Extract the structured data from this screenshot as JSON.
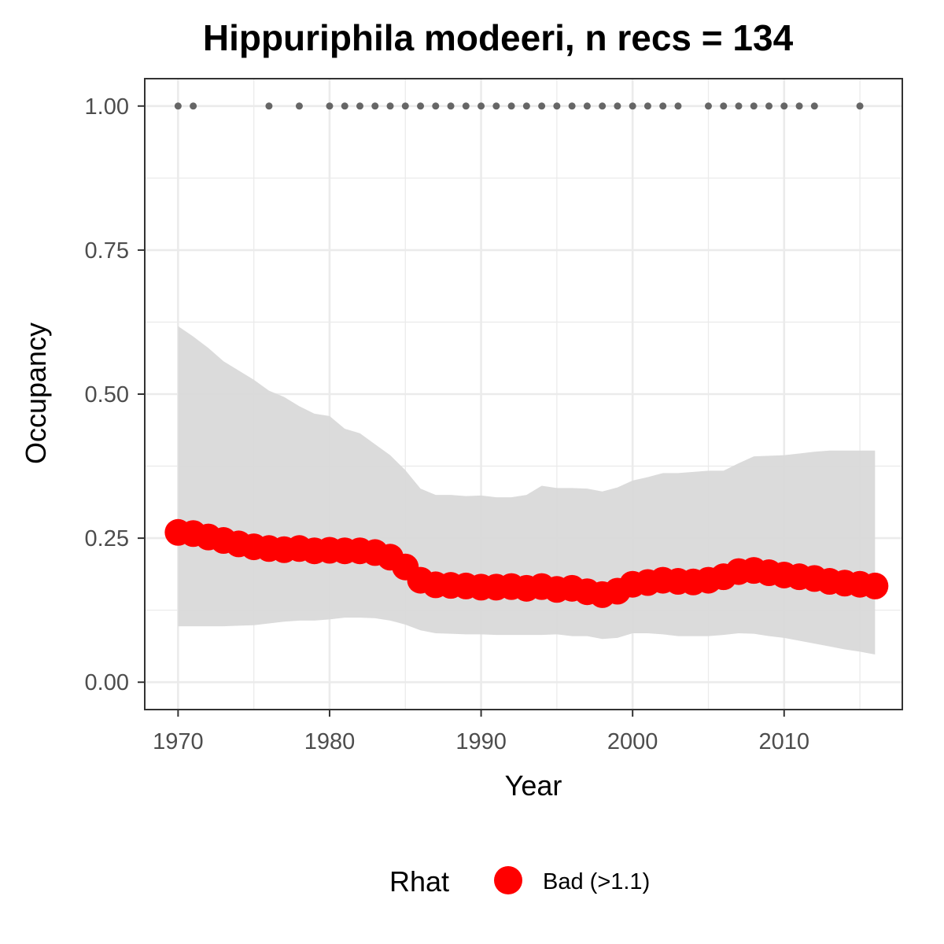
{
  "chart_data": {
    "type": "line",
    "title": "Hippuriphila modeeri, n recs = 134",
    "xlabel": "Year",
    "ylabel": "Occupancy",
    "xlim": [
      1967.8,
      2017.8
    ],
    "ylim": [
      -0.0475,
      1.0475
    ],
    "x_ticks": [
      1970,
      1980,
      1990,
      2000,
      2010
    ],
    "x_tick_labels": [
      "1970",
      "1980",
      "1990",
      "2000",
      "2010"
    ],
    "y_ticks": [
      0,
      0.25,
      0.5,
      0.75,
      1.0
    ],
    "y_tick_labels": [
      "0.00",
      "0.25",
      "0.50",
      "0.75",
      "1.00"
    ],
    "grid": true,
    "legend": {
      "position": "bottom",
      "title": "Rhat",
      "items": [
        {
          "label": "Bad (>1.1)",
          "color": "#ff0000"
        }
      ]
    },
    "colors": {
      "mean_points": "#ff0000",
      "ribbon": "#d9d9d9",
      "record_points": "#666666",
      "grid": "#ebebeb",
      "panel_border": "#333333"
    },
    "series": [
      {
        "kind": "point",
        "x": [
          1970,
          1971,
          1972,
          1973,
          1974,
          1975,
          1976,
          1977,
          1978,
          1979,
          1980,
          1981,
          1982,
          1983,
          1984,
          1985,
          1986,
          1987,
          1988,
          1989,
          1990,
          1991,
          1992,
          1993,
          1994,
          1995,
          1996,
          1997,
          1998,
          1999,
          2000,
          2001,
          2002,
          2003,
          2004,
          2005,
          2006,
          2007,
          2008,
          2009,
          2010,
          2011,
          2012,
          2013,
          2014,
          2015,
          2016
        ],
        "values": [
          0.26,
          0.258,
          0.252,
          0.246,
          0.24,
          0.235,
          0.232,
          0.23,
          0.232,
          0.228,
          0.229,
          0.228,
          0.228,
          0.225,
          0.217,
          0.2,
          0.177,
          0.169,
          0.168,
          0.167,
          0.165,
          0.165,
          0.166,
          0.163,
          0.166,
          0.161,
          0.163,
          0.157,
          0.152,
          0.158,
          0.17,
          0.173,
          0.177,
          0.175,
          0.174,
          0.177,
          0.183,
          0.192,
          0.194,
          0.19,
          0.186,
          0.183,
          0.18,
          0.175,
          0.172,
          0.17,
          0.167
        ]
      },
      {
        "kind": "ribbon",
        "x": [
          1970,
          1971,
          1972,
          1973,
          1974,
          1975,
          1976,
          1977,
          1978,
          1979,
          1980,
          1981,
          1982,
          1983,
          1984,
          1985,
          1986,
          1987,
          1988,
          1989,
          1990,
          1991,
          1992,
          1993,
          1994,
          1995,
          1996,
          1997,
          1998,
          1999,
          2000,
          2001,
          2002,
          2003,
          2004,
          2005,
          2006,
          2007,
          2008,
          2009,
          2010,
          2011,
          2012,
          2013,
          2014,
          2015,
          2016
        ],
        "lower": [
          0.097,
          0.097,
          0.097,
          0.097,
          0.098,
          0.099,
          0.102,
          0.105,
          0.107,
          0.107,
          0.109,
          0.112,
          0.112,
          0.111,
          0.107,
          0.1,
          0.09,
          0.085,
          0.084,
          0.083,
          0.083,
          0.082,
          0.082,
          0.082,
          0.082,
          0.083,
          0.08,
          0.08,
          0.075,
          0.077,
          0.085,
          0.085,
          0.083,
          0.08,
          0.08,
          0.08,
          0.082,
          0.085,
          0.084,
          0.08,
          0.077,
          0.072,
          0.067,
          0.062,
          0.057,
          0.053,
          0.048
        ],
        "upper": [
          0.618,
          0.6,
          0.58,
          0.557,
          0.541,
          0.525,
          0.506,
          0.495,
          0.479,
          0.466,
          0.462,
          0.44,
          0.432,
          0.413,
          0.394,
          0.368,
          0.336,
          0.325,
          0.325,
          0.323,
          0.324,
          0.321,
          0.321,
          0.325,
          0.341,
          0.337,
          0.337,
          0.336,
          0.331,
          0.338,
          0.35,
          0.356,
          0.363,
          0.363,
          0.365,
          0.367,
          0.367,
          0.38,
          0.392,
          0.393,
          0.394,
          0.397,
          0.4,
          0.402,
          0.402,
          0.402,
          0.402
        ]
      },
      {
        "kind": "records",
        "x": [
          1970,
          1971,
          1976,
          1978,
          1980,
          1981,
          1982,
          1983,
          1984,
          1985,
          1986,
          1987,
          1988,
          1989,
          1990,
          1991,
          1992,
          1993,
          1994,
          1995,
          1996,
          1997,
          1998,
          1999,
          2000,
          2001,
          2002,
          2003,
          2005,
          2006,
          2007,
          2008,
          2009,
          2010,
          2011,
          2012,
          2015
        ],
        "values": [
          1,
          1,
          1,
          1,
          1,
          1,
          1,
          1,
          1,
          1,
          1,
          1,
          1,
          1,
          1,
          1,
          1,
          1,
          1,
          1,
          1,
          1,
          1,
          1,
          1,
          1,
          1,
          1,
          1,
          1,
          1,
          1,
          1,
          1,
          1,
          1,
          1
        ]
      }
    ]
  }
}
